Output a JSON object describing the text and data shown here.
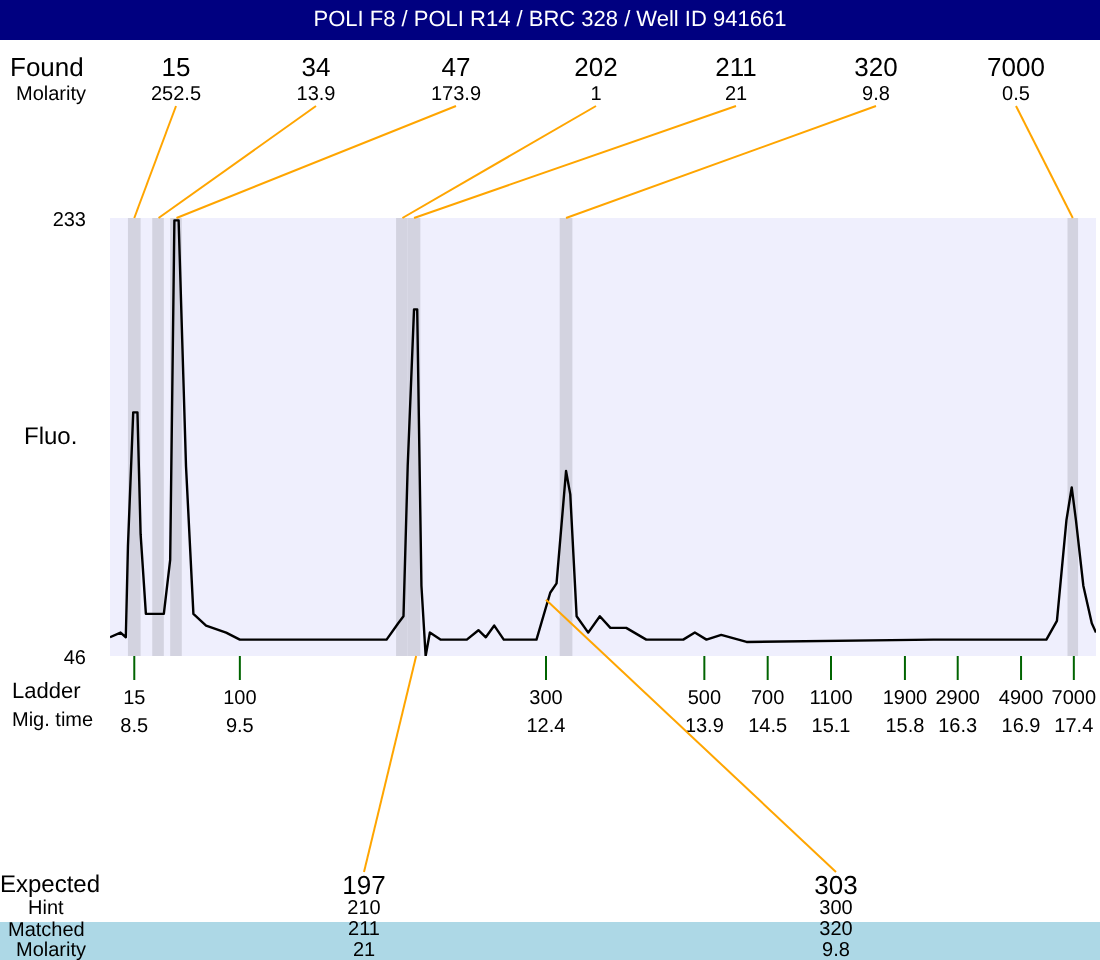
{
  "chart_data": {
    "type": "line",
    "title": "POLI F8 / POLI R14 / BRC 328 / Well ID 941661",
    "ylabel": "Fluo.",
    "xlabel": "Mig. time",
    "x": [
      8.27,
      8.37,
      8.42,
      8.44,
      8.49,
      8.53,
      8.56,
      8.61,
      8.78,
      8.84,
      8.88,
      8.92,
      8.99,
      9.06,
      9.18,
      9.37,
      9.5,
      10.89,
      11.0,
      11.05,
      11.09,
      11.15,
      11.18,
      11.22,
      11.26,
      11.3,
      11.4,
      11.65,
      11.76,
      11.83,
      11.91,
      12.0,
      12.31,
      12.44,
      12.5,
      12.59,
      12.63,
      12.69,
      12.8,
      12.91,
      13.01,
      13.16,
      13.35,
      13.7,
      13.81,
      13.92,
      14.06,
      14.3,
      16.07,
      17.14,
      17.24,
      17.33,
      17.38,
      17.42,
      17.49,
      17.57,
      17.61
    ],
    "values": [
      54,
      56,
      54,
      93,
      150,
      150,
      98,
      64,
      64,
      87,
      232,
      232,
      127,
      64,
      59,
      56,
      53,
      53,
      60,
      63,
      127,
      194,
      194,
      76,
      46,
      56,
      53,
      53,
      57,
      54,
      59,
      53,
      53,
      73,
      77,
      125,
      115,
      63,
      56,
      63,
      58,
      58,
      53,
      53,
      56,
      53,
      55,
      52,
      53,
      53,
      61,
      104,
      118,
      104,
      76,
      60,
      56
    ],
    "color": "#000000",
    "marker": "none",
    "xlim": [
      8.27,
      17.61
    ],
    "xticks": [
      8.5,
      9.5,
      12.4,
      13.9,
      14.5,
      15.1,
      15.8,
      16.3,
      16.9,
      17.4
    ],
    "ylim": [
      46,
      233
    ],
    "yticks": [
      46,
      233
    ],
    "bands": [
      {
        "axis": "x",
        "from": 8.44,
        "to": 8.56,
        "label": "15",
        "color": "#d3d3e0"
      },
      {
        "axis": "x",
        "from": 8.67,
        "to": 8.78,
        "label": "34",
        "color": "#d3d3e0"
      },
      {
        "axis": "x",
        "from": 8.84,
        "to": 8.95,
        "label": "47",
        "color": "#d3d3e0"
      },
      {
        "axis": "x",
        "from": 10.98,
        "to": 11.09,
        "label": "202",
        "color": "#d3d3e0"
      },
      {
        "axis": "x",
        "from": 11.09,
        "to": 11.21,
        "label": "211",
        "color": "#d3d3e0"
      },
      {
        "axis": "x",
        "from": 12.53,
        "to": 12.65,
        "label": "320",
        "color": "#d3d3e0"
      },
      {
        "axis": "x",
        "from": 17.34,
        "to": 17.44,
        "label": "7000",
        "color": "#d3d3e0"
      }
    ],
    "annotations": [
      "Found",
      "Molarity",
      "Ladder",
      "Expected",
      "Hint",
      "Matched",
      "Molarity",
      {
        "text": "252.5",
        "x": 8.5,
        "y": 233
      },
      {
        "text": "13.9",
        "x": 8.73,
        "y": 233
      },
      {
        "text": "173.9",
        "x": 8.9,
        "y": 233
      },
      {
        "text": "1",
        "x": 11.04,
        "y": 233
      },
      {
        "text": "21",
        "x": 11.15,
        "y": 233
      },
      {
        "text": "9.8",
        "x": 12.59,
        "y": 233
      },
      {
        "text": "0.5",
        "x": 17.39,
        "y": 233
      },
      "15",
      "100",
      "300",
      "500",
      "700",
      "1100",
      "1900",
      "2900",
      "4900",
      "7000",
      {
        "text": "197",
        "x": 11.17,
        "y": 46
      },
      {
        "text": "303",
        "x": 12.4,
        "y": 70
      },
      "210",
      "300",
      "211",
      "320",
      "21",
      "9.8"
    ]
  }
}
